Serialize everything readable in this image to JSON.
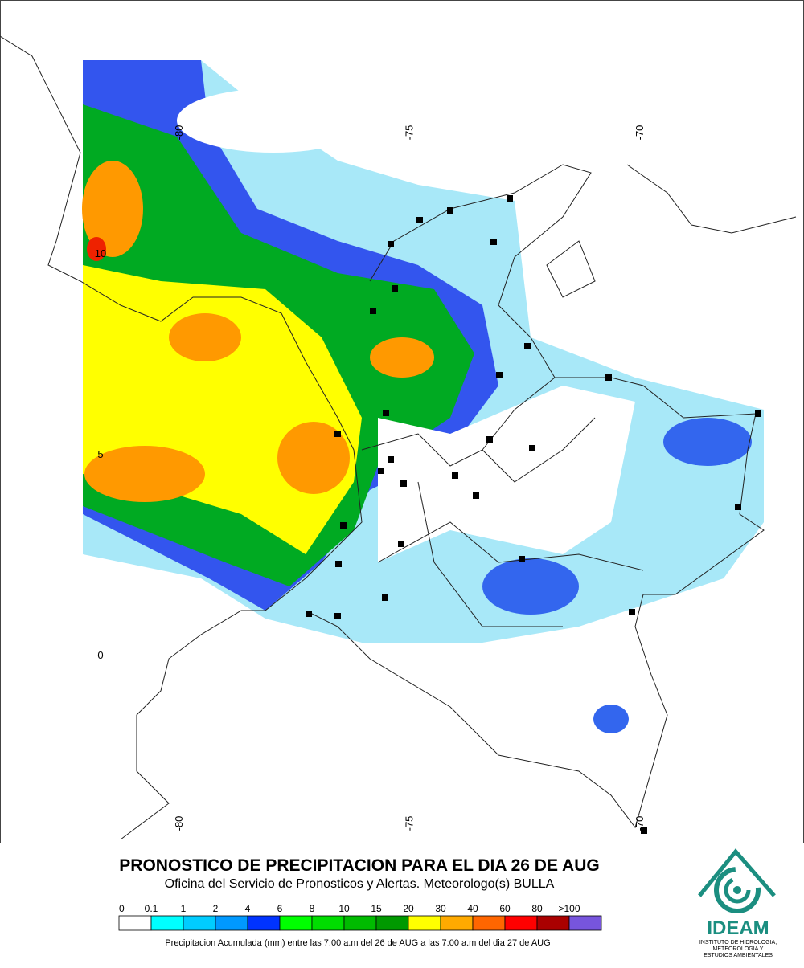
{
  "map": {
    "lon_ticks": [
      -80,
      -75,
      -70
    ],
    "lat_ticks": [
      10,
      5,
      0
    ]
  },
  "title": "PRONOSTICO DE PRECIPITACION PARA EL DIA 26 DE AUG",
  "subtitle": "Oficina del Servicio de Pronosticos y Alertas. Meteorologo(s) BULLA",
  "legend": {
    "ticks": [
      0,
      0.1,
      1,
      2,
      4,
      6,
      8,
      10,
      15,
      20,
      30,
      40,
      60,
      80,
      {
        "value": 100,
        "label": ">100"
      }
    ],
    "colors": [
      "#ffffff",
      "#00ffff",
      "#00ccff",
      "#0099ff",
      "#0033ff",
      "#00ff00",
      "#00dd00",
      "#00bb00",
      "#009900",
      "#ffff00",
      "#ffaa00",
      "#ff6600",
      "#ff0000",
      "#aa0000",
      "#7755dd"
    ],
    "caption": "Precipitacion Acumulada (mm) entre las 7:00 a.m del 26 de AUG a las 7:00 a.m del dia 27 de AUG"
  },
  "logo": {
    "name": "IDEAM",
    "lines": [
      "INSTITUTO DE HIDROLOGIA,",
      "METEOROLOGIA Y",
      "ESTUDIOS AMBIENTALES"
    ]
  }
}
